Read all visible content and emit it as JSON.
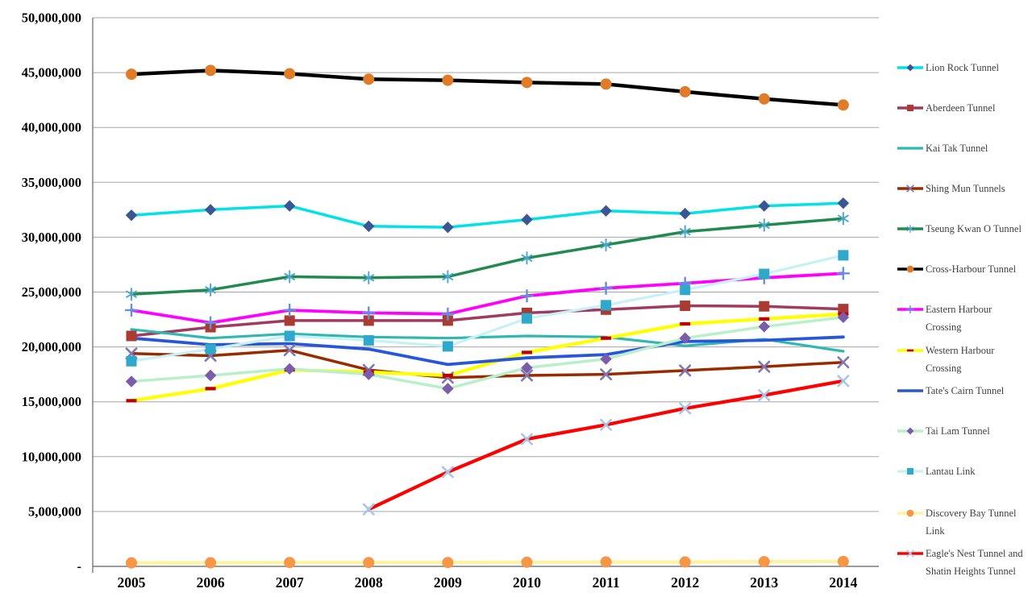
{
  "chart_data": {
    "type": "line",
    "title": "",
    "xlabel": "",
    "ylabel": "",
    "legend_position": "right",
    "grid": true,
    "x_axis": {
      "categories": [
        "2005",
        "2006",
        "2007",
        "2008",
        "2009",
        "2010",
        "2011",
        "2012",
        "2013",
        "2014"
      ]
    },
    "y_axis": {
      "min": 0,
      "max": 50000000,
      "tick_interval": 5000000,
      "ticks": [
        {
          "value": 50000000,
          "label": "50,000,000"
        },
        {
          "value": 45000000,
          "label": "45,000,000"
        },
        {
          "value": 40000000,
          "label": "40,000,000"
        },
        {
          "value": 35000000,
          "label": "35,000,000"
        },
        {
          "value": 30000000,
          "label": "30,000,000"
        },
        {
          "value": 25000000,
          "label": "25,000,000"
        },
        {
          "value": 20000000,
          "label": "20,000,000"
        },
        {
          "value": 15000000,
          "label": "15,000,000"
        },
        {
          "value": 10000000,
          "label": "10,000,000"
        },
        {
          "value": 5000000,
          "label": "5,000,000"
        },
        {
          "value": 0,
          "label": "-"
        }
      ]
    },
    "series": [
      {
        "id": "lion-rock-tunnel",
        "label": "Lion Rock Tunnel",
        "color": "#00E1E8",
        "line_width": 3.5,
        "marker": "diamond",
        "marker_color": "#3A5795",
        "values": [
          32000000,
          32500000,
          32850000,
          31000000,
          30900000,
          31600000,
          32400000,
          32150000,
          32850000,
          33100000
        ]
      },
      {
        "id": "aberdeen-tunnel",
        "label": "Aberdeen Tunnel",
        "color": "#A03A5E",
        "line_width": 3.5,
        "marker": "square",
        "marker_color": "#A93B32",
        "values": [
          21000000,
          21800000,
          22400000,
          22400000,
          22400000,
          23100000,
          23400000,
          23750000,
          23700000,
          23450000
        ]
      },
      {
        "id": "kai-tak-tunnel",
        "label": "Kai Tak Tunnel",
        "color": "#2FB8B0",
        "line_width": 3.2,
        "marker": "none",
        "marker_color": "#2FB8B0",
        "values": [
          21600000,
          20800000,
          21200000,
          20900000,
          20800000,
          21000000,
          20900000,
          20100000,
          20700000,
          19600000
        ]
      },
      {
        "id": "shing-mun-tunnels",
        "label": "Shing Mun Tunnels",
        "color": "#992B00",
        "line_width": 3.5,
        "marker": "x",
        "marker_color": "#8077B5",
        "values": [
          19400000,
          19200000,
          19700000,
          17900000,
          17200000,
          17400000,
          17500000,
          17850000,
          18200000,
          18600000
        ]
      },
      {
        "id": "tseung-kwan-o-tunnel",
        "label": "Tseung Kwan O Tunnel",
        "color": "#218A4E",
        "line_width": 3.5,
        "marker": "asterisk",
        "marker_color": "#4BA6CE",
        "values": [
          24800000,
          25200000,
          26400000,
          26300000,
          26400000,
          28100000,
          29300000,
          30500000,
          31100000,
          31700000
        ]
      },
      {
        "id": "cross-harbour-tunnel",
        "label": "Cross-Harbour Tunnel",
        "color": "#000000",
        "line_width": 4.5,
        "marker": "circle",
        "marker_color": "#E07B28",
        "values": [
          44850000,
          45200000,
          44900000,
          44400000,
          44300000,
          44100000,
          43950000,
          43250000,
          42600000,
          42050000
        ]
      },
      {
        "id": "eastern-harbour-crossing",
        "label": "Eastern Harbour Crossing",
        "color": "#FF00FF",
        "line_width": 3.8,
        "marker": "plus",
        "marker_color": "#6192DD",
        "values": [
          23350000,
          22200000,
          23350000,
          23100000,
          23000000,
          24650000,
          25350000,
          25800000,
          26300000,
          26700000
        ]
      },
      {
        "id": "western-harbour-crossing",
        "label": "Western Harbour Crossing",
        "color": "#FFFF00",
        "line_width": 4.2,
        "marker": "dash",
        "marker_color": "#C00000",
        "values": [
          15100000,
          16200000,
          17900000,
          17700000,
          17400000,
          19500000,
          20800000,
          22100000,
          22550000,
          23000000
        ]
      },
      {
        "id": "tates-cairn-tunnel",
        "label": "Tate's Cairn Tunnel",
        "color": "#2757D8",
        "line_width": 3.8,
        "marker": "none",
        "marker_color": "#2757D8",
        "values": [
          20800000,
          20200000,
          20300000,
          19800000,
          18400000,
          19000000,
          19300000,
          20500000,
          20600000,
          20900000
        ]
      },
      {
        "id": "tai-lam-tunnel",
        "label": "Tai Lam Tunnel",
        "color": "#B9F0C9",
        "line_width": 3.5,
        "marker": "diamond",
        "marker_color": "#7A5CA8",
        "values": [
          16850000,
          17400000,
          18000000,
          17500000,
          16200000,
          18100000,
          18900000,
          20800000,
          21850000,
          22700000
        ]
      },
      {
        "id": "lantau-link",
        "label": "Lantau Link",
        "color": "#C6F1F7",
        "line_width": 3.2,
        "marker": "square",
        "marker_color": "#2FA8CC",
        "values": [
          18700000,
          19800000,
          21000000,
          20600000,
          20050000,
          22600000,
          23800000,
          25200000,
          26650000,
          28350000
        ]
      },
      {
        "id": "discovery-bay-tunnel-link",
        "label": "Discovery Bay Tunnel Link",
        "color": "#FFF3A0",
        "line_width": 4.2,
        "marker": "circle",
        "marker_color": "#F79646",
        "values": [
          320000,
          330000,
          350000,
          350000,
          350000,
          380000,
          400000,
          400000,
          430000,
          450000
        ]
      },
      {
        "id": "eagles-nest-tunnel-and-shatin-heights-tunnel",
        "label": "Eagle's Nest Tunnel and Shatin Heights Tunnel",
        "color": "#FE0000",
        "line_width": 4.2,
        "marker": "x",
        "marker_color": "#A8C6EA",
        "values": [
          null,
          null,
          null,
          5200000,
          8600000,
          11600000,
          12900000,
          14400000,
          15600000,
          16900000
        ]
      }
    ]
  }
}
